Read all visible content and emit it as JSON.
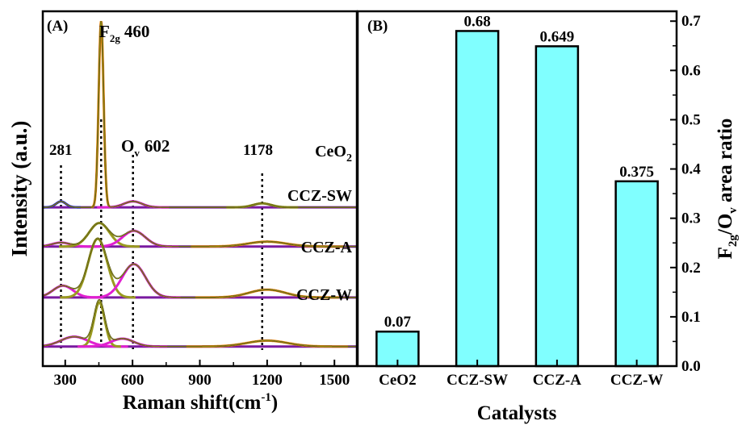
{
  "chart_data": [
    {
      "panel_label": "(A)",
      "type": "line",
      "xlabel": "Raman shift(cm",
      "xlabel_sup": "-1",
      "xlabel_close": ")",
      "ylabel": "Intensity (a.u.)",
      "xlim": [
        200,
        1600
      ],
      "xticks": [
        300,
        600,
        900,
        1200,
        1500
      ],
      "xtick_labels": [
        "300",
        "600",
        "900",
        "1200",
        "1500"
      ],
      "peak_labels": {
        "f2g_main": "F",
        "f2g_sub": "2g",
        "f2g_val": "460",
        "ov_main": "O",
        "ov_sub": "v",
        "ov_val": "602",
        "p281": "281",
        "p1178": "1178"
      },
      "reference_lines": [
        281,
        460,
        602,
        1178
      ],
      "samples": [
        {
          "name": "CeO",
          "name_sub": "2",
          "baseline": 0.0,
          "peaks": [
            {
              "center": 281,
              "height": 0.06,
              "width": 22,
              "color": "#2a2ad8"
            },
            {
              "center": 460,
              "height": 1.9,
              "width": 11,
              "color": "#f08c10"
            },
            {
              "center": 602,
              "height": 0.06,
              "width": 40,
              "color": "#e020d0"
            },
            {
              "center": 1178,
              "height": 0.04,
              "width": 40,
              "color": "#9a9a20"
            }
          ]
        },
        {
          "name": "CCZ-SW",
          "name_sub": "",
          "baseline": -0.4,
          "peaks": [
            {
              "center": 281,
              "height": 0.04,
              "width": 40,
              "color": "#e020d0"
            },
            {
              "center": 452,
              "height": 0.24,
              "width": 45,
              "color": "#9a9a20"
            },
            {
              "center": 606,
              "height": 0.16,
              "width": 50,
              "color": "#e020d0"
            },
            {
              "center": 1200,
              "height": 0.05,
              "width": 85,
              "color": "#f08c10"
            }
          ]
        },
        {
          "name": "CCZ-A",
          "name_sub": "",
          "baseline": -0.92,
          "peaks": [
            {
              "center": 290,
              "height": 0.12,
              "width": 45,
              "color": "#e020d0"
            },
            {
              "center": 445,
              "height": 0.6,
              "width": 42,
              "color": "#9a9a20"
            },
            {
              "center": 606,
              "height": 0.34,
              "width": 52,
              "color": "#e020d0"
            },
            {
              "center": 1200,
              "height": 0.08,
              "width": 80,
              "color": "#f08c10"
            }
          ]
        },
        {
          "name": "CCZ-W",
          "name_sub": "",
          "baseline": -1.42,
          "peaks": [
            {
              "center": 340,
              "height": 0.1,
              "width": 60,
              "color": "#e020d0"
            },
            {
              "center": 452,
              "height": 0.45,
              "width": 24,
              "color": "#9a9a20"
            },
            {
              "center": 555,
              "height": 0.08,
              "width": 50,
              "color": "#e020d0"
            },
            {
              "center": 1200,
              "height": 0.06,
              "width": 90,
              "color": "#f08c10"
            }
          ]
        }
      ],
      "ylim": [
        -1.62,
        2.0
      ]
    },
    {
      "panel_label": "(B)",
      "type": "bar",
      "categories": [
        "CeO2",
        "CCZ-SW",
        "CCZ-A",
        "CCZ-W"
      ],
      "values": [
        0.07,
        0.68,
        0.649,
        0.375
      ],
      "value_labels": [
        "0.07",
        "0.68",
        "0.649",
        "0.375"
      ],
      "xlabel": "Catalysts",
      "ylabel_main": "F",
      "ylabel_sub1": "2g",
      "ylabel_mid": "/O",
      "ylabel_sub2": "v",
      "ylabel_end": " area ratio",
      "ylim": [
        0,
        0.72
      ],
      "yticks": [
        0.0,
        0.1,
        0.2,
        0.3,
        0.4,
        0.5,
        0.6,
        0.7
      ],
      "ytick_labels": [
        "0.0",
        "0.1",
        "0.2",
        "0.3",
        "0.4",
        "0.5",
        "0.6",
        "0.7"
      ],
      "bar_color": "#80ffff",
      "y_axis_side": "right"
    }
  ]
}
